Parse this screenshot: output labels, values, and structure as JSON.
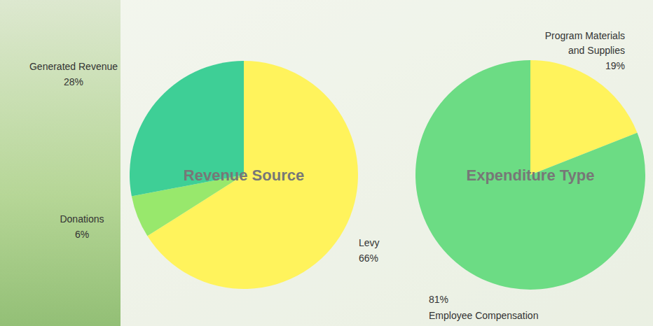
{
  "chart_data": [
    {
      "type": "pie",
      "title": "Revenue Source",
      "categories": [
        "Levy",
        "Donations",
        "Generated Revenue"
      ],
      "values": [
        66,
        6,
        28
      ],
      "value_labels": [
        "66%",
        "6%",
        "28%"
      ],
      "colors": [
        "#fff35c",
        "#98e86c",
        "#3ecf96"
      ],
      "data_labels": true
    },
    {
      "type": "pie",
      "title": "Expenditure Type",
      "categories": [
        "Program Materials and Supplies",
        "Employee Compensation"
      ],
      "values": [
        19,
        81
      ],
      "value_labels": [
        "19%",
        "81%"
      ],
      "colors": [
        "#fff35c",
        "#6cdc84"
      ],
      "data_labels": true
    }
  ]
}
